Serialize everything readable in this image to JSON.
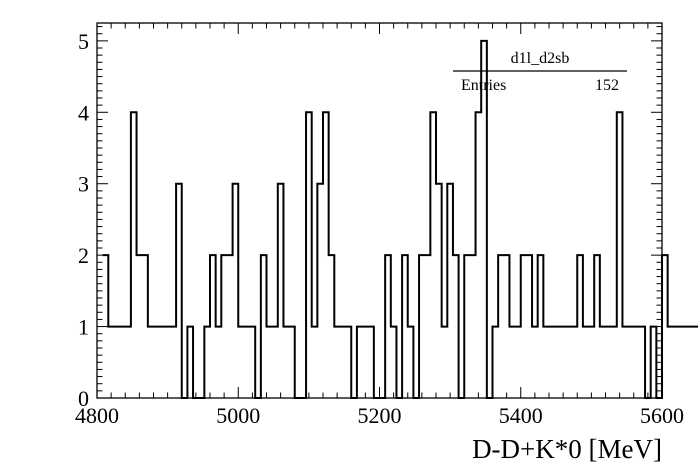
{
  "chart_data": {
    "type": "histogram",
    "xlabel": "D-D+K*0 [MeV]",
    "ylabel": "",
    "xlim": [
      4800,
      5600
    ],
    "ylim": [
      0,
      5.25
    ],
    "bin_width": 8,
    "x_ticks": [
      4800,
      5000,
      5200,
      5400,
      5600
    ],
    "y_ticks": [
      0,
      1,
      2,
      3,
      4,
      5
    ],
    "grid": false,
    "values": [
      2,
      1,
      1,
      1,
      1,
      4,
      2,
      2,
      1,
      1,
      1,
      1,
      1,
      3,
      0,
      1,
      0,
      0,
      1,
      2,
      1,
      2,
      2,
      3,
      1,
      1,
      1,
      0,
      2,
      1,
      1,
      3,
      1,
      1,
      0,
      0,
      4,
      1,
      3,
      4,
      2,
      1,
      1,
      1,
      0,
      1,
      1,
      1,
      0,
      0,
      2,
      1,
      0,
      2,
      1,
      0,
      2,
      2,
      4,
      3,
      1,
      3,
      2,
      0,
      2,
      2,
      4,
      5,
      0,
      1,
      2,
      2,
      1,
      1,
      2,
      2,
      1,
      2,
      1,
      1,
      1,
      1,
      1,
      1,
      2,
      1,
      1,
      2,
      1,
      1,
      1,
      4,
      1,
      1,
      1,
      1,
      0,
      1,
      0,
      2,
      1,
      1,
      1,
      1,
      1,
      1,
      1,
      1,
      1,
      1
    ],
    "stats_box": {
      "name": "d1l_d2sb",
      "entries_label": "Entries",
      "entries_value": "152"
    }
  }
}
